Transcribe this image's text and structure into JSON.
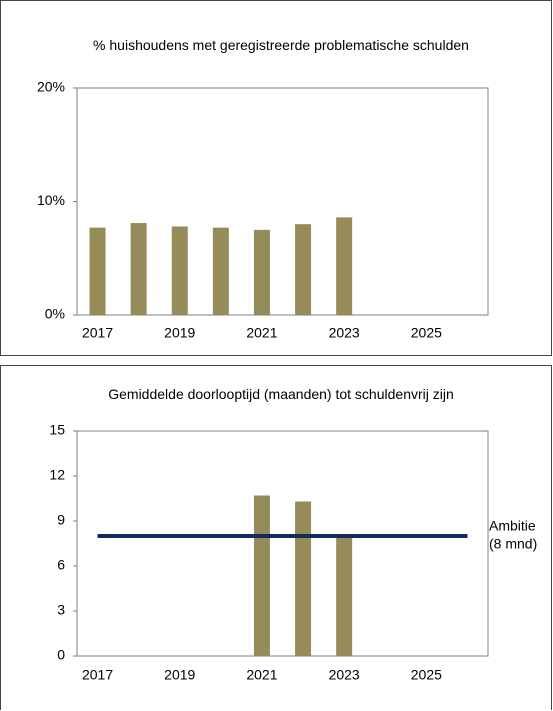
{
  "chart_data": [
    {
      "type": "bar",
      "title": "% huishoudens met geregistreerde problematische schulden",
      "categories": [
        "2017",
        null,
        "2019",
        null,
        "2021",
        null,
        "2023",
        null,
        "2025",
        null
      ],
      "values": [
        7.7,
        8.1,
        7.8,
        7.7,
        7.5,
        8.0,
        8.6,
        null,
        null,
        null
      ],
      "color": "#968c5a",
      "ylim": [
        0,
        20
      ],
      "yticks": [
        {
          "value": 0,
          "label": "0%"
        },
        {
          "value": 10,
          "label": "10%"
        },
        {
          "value": 20,
          "label": "20%"
        }
      ],
      "grid": false
    },
    {
      "type": "bar",
      "title": "Gemiddelde doorlooptijd (maanden) tot schuldenvrij zijn",
      "categories": [
        "2017",
        null,
        "2019",
        null,
        "2021",
        null,
        "2023",
        null,
        "2025",
        null
      ],
      "values": [
        null,
        null,
        null,
        null,
        10.7,
        10.3,
        8.1,
        null,
        null,
        null
      ],
      "color": "#968c5a",
      "ylim": [
        0,
        15
      ],
      "yticks": [
        0,
        3,
        6,
        9,
        12,
        15
      ],
      "grid": false,
      "target": {
        "value": 8,
        "color": "#102a5c",
        "label": [
          "Ambitie",
          "(8 mnd)"
        ]
      }
    }
  ]
}
